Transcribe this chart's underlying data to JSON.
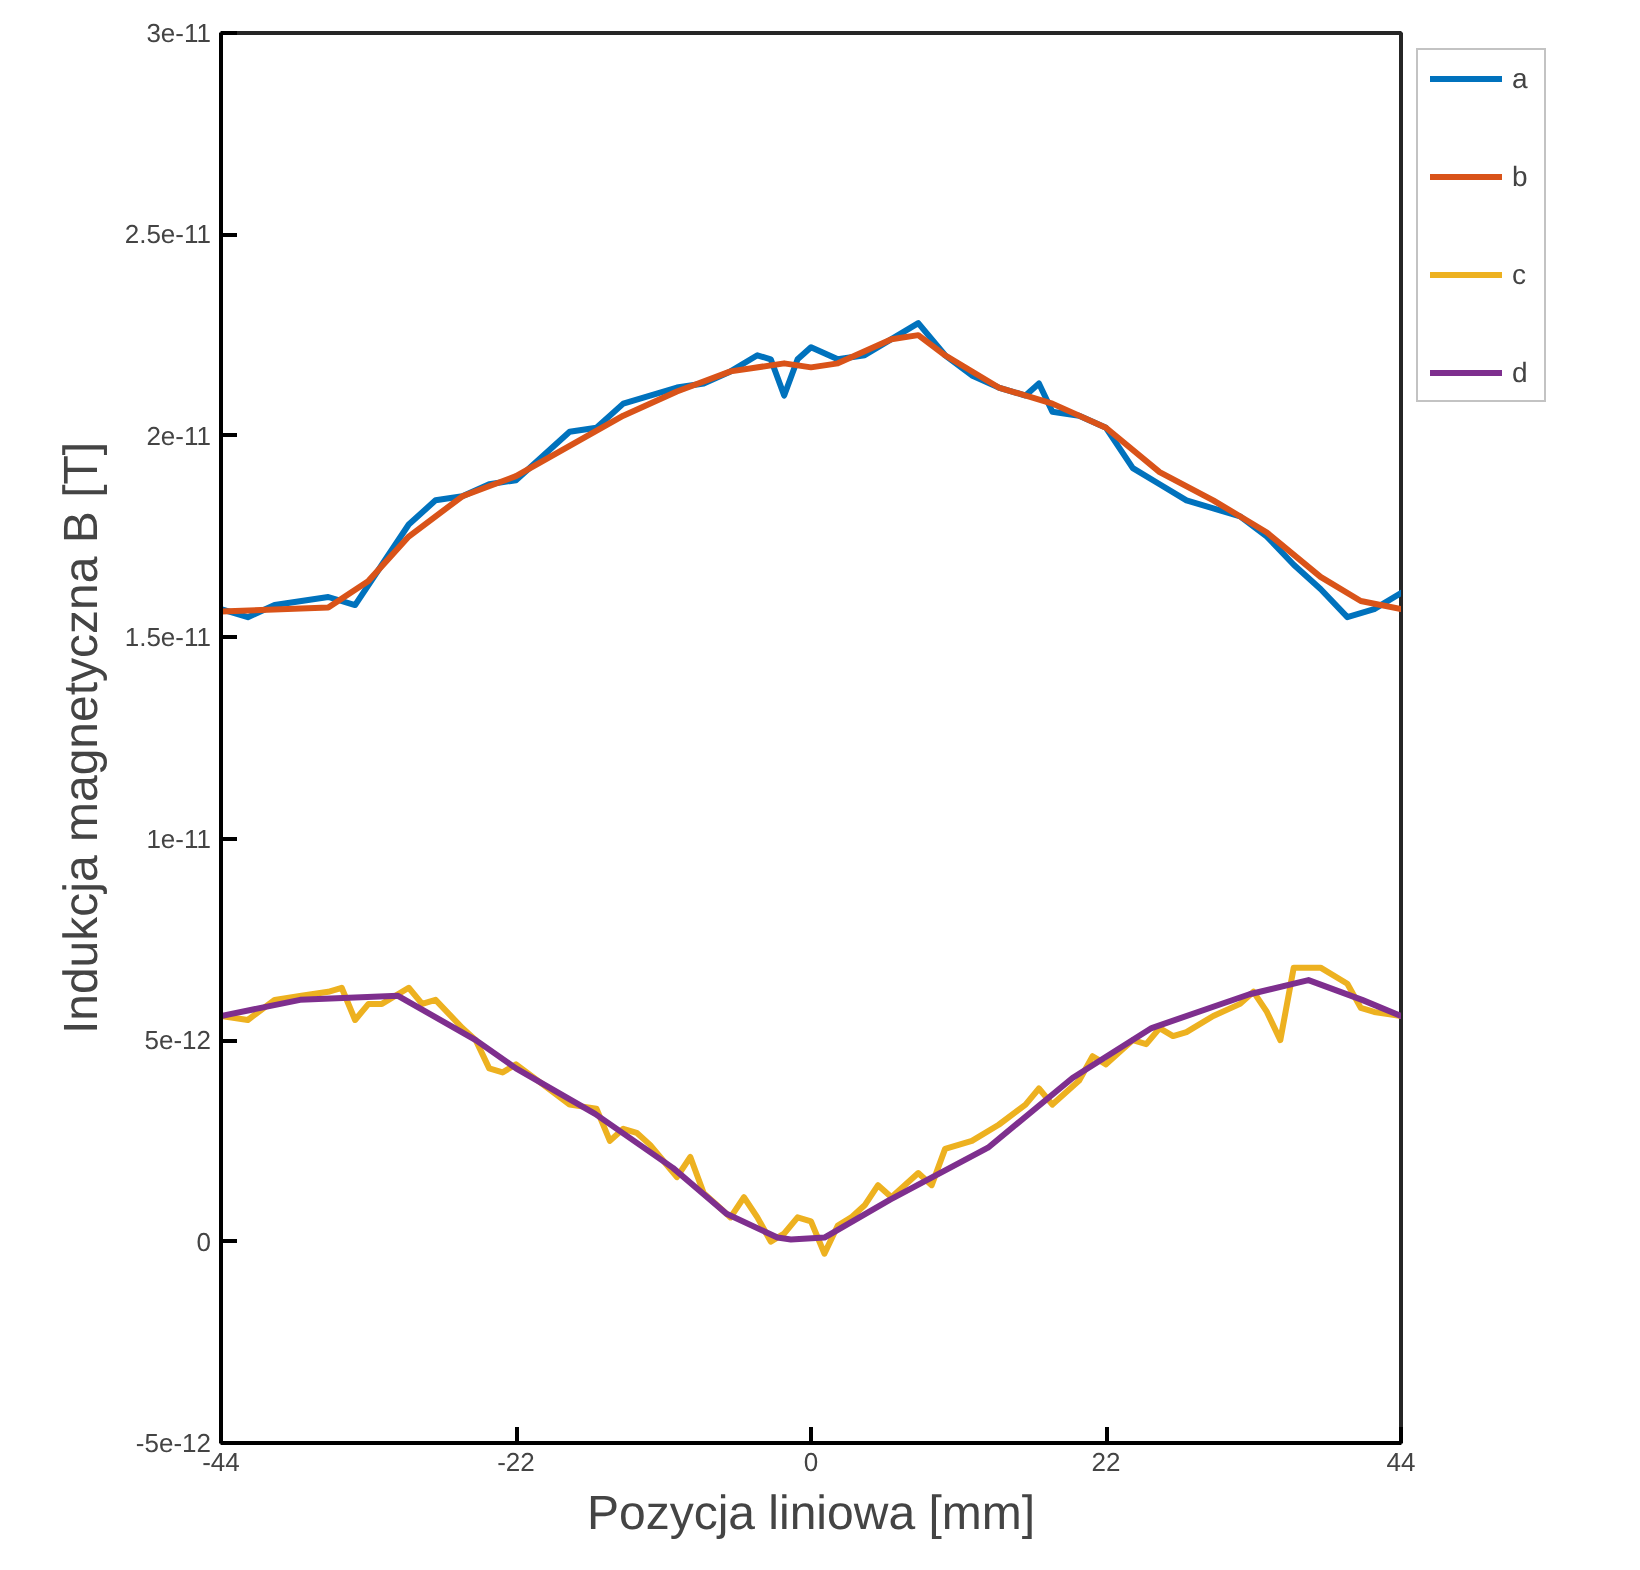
{
  "chart_data": {
    "type": "line",
    "xlabel": "Pozycja liniowa [mm]",
    "ylabel": "Indukcja magnetyczna B [T]",
    "xlim": [
      -44,
      44
    ],
    "xticks": [
      -44,
      -22,
      0,
      22,
      44
    ],
    "ylim": [
      -5e-12,
      3e-11
    ],
    "yticks": [
      {
        "value": -5e-12,
        "label": "-5e-12"
      },
      {
        "value": 0,
        "label": "0"
      },
      {
        "value": 5e-12,
        "label": "5e-12"
      },
      {
        "value": 1e-11,
        "label": "1e-11"
      },
      {
        "value": 1.5e-11,
        "label": "1.5e-11"
      },
      {
        "value": 2e-11,
        "label": "2e-11"
      },
      {
        "value": 2.5e-11,
        "label": "2.5e-11"
      },
      {
        "value": 3e-11,
        "label": "3e-11"
      }
    ],
    "grid": false,
    "legend": "top right",
    "marker": "none",
    "line_style": "solid",
    "series": [
      {
        "name": "a",
        "color": "#0072bd",
        "x": [
          -44,
          -42,
          -40,
          -38,
          -36,
          -34,
          -32,
          -30,
          -28,
          -26,
          -24,
          -22,
          -20,
          -18,
          -16,
          -14,
          -12,
          -10,
          -8,
          -6,
          -4,
          -3,
          -2,
          -1,
          0,
          2,
          4,
          6,
          8,
          10,
          12,
          14,
          16,
          17,
          18,
          20,
          22,
          24,
          26,
          28,
          30,
          32,
          34,
          36,
          38,
          40,
          42,
          44
        ],
        "values": [
          1.57e-11,
          1.55e-11,
          1.58e-11,
          1.59e-11,
          1.6e-11,
          1.58e-11,
          1.68e-11,
          1.78e-11,
          1.84e-11,
          1.85e-11,
          1.88e-11,
          1.89e-11,
          1.95e-11,
          2.01e-11,
          2.02e-11,
          2.08e-11,
          2.1e-11,
          2.12e-11,
          2.13e-11,
          2.16e-11,
          2.2e-11,
          2.19e-11,
          2.1e-11,
          2.19e-11,
          2.22e-11,
          2.19e-11,
          2.2e-11,
          2.24e-11,
          2.28e-11,
          2.2e-11,
          2.15e-11,
          2.12e-11,
          2.1e-11,
          2.13e-11,
          2.06e-11,
          2.05e-11,
          2.02e-11,
          1.92e-11,
          1.88e-11,
          1.84e-11,
          1.82e-11,
          1.8e-11,
          1.75e-11,
          1.68e-11,
          1.62e-11,
          1.55e-11,
          1.57e-11,
          1.61e-11
        ]
      },
      {
        "name": "b",
        "color": "#d95319",
        "x": [
          -44,
          -36,
          -33,
          -30,
          -26,
          -22,
          -18,
          -14,
          -10,
          -6,
          -2,
          0,
          2,
          6,
          8,
          10,
          14,
          18,
          22,
          26,
          30,
          34,
          38,
          41,
          44
        ],
        "values": [
          1.564e-11,
          1.574e-11,
          1.64e-11,
          1.75e-11,
          1.85e-11,
          1.9e-11,
          1.975e-11,
          2.05e-11,
          2.11e-11,
          2.16e-11,
          2.18e-11,
          2.17e-11,
          2.18e-11,
          2.24e-11,
          2.25e-11,
          2.2e-11,
          2.12e-11,
          2.08e-11,
          2.02e-11,
          1.91e-11,
          1.84e-11,
          1.76e-11,
          1.65e-11,
          1.59e-11,
          1.57e-11
        ]
      },
      {
        "name": "c",
        "color": "#edb120",
        "x": [
          -44,
          -42,
          -40,
          -38,
          -36,
          -35,
          -34,
          -33,
          -32,
          -30,
          -29,
          -28,
          -26,
          -25,
          -24,
          -23,
          -22,
          -20,
          -18,
          -16,
          -15,
          -14,
          -13,
          -12,
          -11,
          -10,
          -9,
          -8,
          -7,
          -6,
          -5,
          -4,
          -3,
          -2,
          -1,
          0,
          1,
          2,
          3,
          4,
          5,
          6,
          8,
          9,
          10,
          12,
          14,
          16,
          17,
          18,
          20,
          21,
          22,
          24,
          25,
          26,
          27,
          28,
          30,
          32,
          33,
          34,
          35,
          36,
          38,
          40,
          41,
          42,
          44
        ],
        "values": [
          5.6e-12,
          5.5e-12,
          6e-12,
          6.1e-12,
          6.2e-12,
          6.3e-12,
          5.5e-12,
          5.9e-12,
          5.9e-12,
          6.3e-12,
          5.9e-12,
          6e-12,
          5.3e-12,
          5e-12,
          4.3e-12,
          4.2e-12,
          4.4e-12,
          3.9e-12,
          3.4e-12,
          3.3e-12,
          2.5e-12,
          2.8e-12,
          2.7e-12,
          2.4e-12,
          2e-12,
          1.6e-12,
          2.1e-12,
          1.2e-12,
          9e-13,
          6e-13,
          1.1e-12,
          6e-13,
          0,
          2e-13,
          6e-13,
          5e-13,
          -3e-13,
          4e-13,
          6e-13,
          9e-13,
          1.4e-12,
          1.1e-12,
          1.7e-12,
          1.4e-12,
          2.3e-12,
          2.5e-12,
          2.9e-12,
          3.4e-12,
          3.8e-12,
          3.4e-12,
          4e-12,
          4.6e-12,
          4.4e-12,
          5e-12,
          4.9e-12,
          5.3e-12,
          5.1e-12,
          5.2e-12,
          5.6e-12,
          5.9e-12,
          6.2e-12,
          5.7e-12,
          5e-12,
          6.8e-12,
          6.8e-12,
          6.4e-12,
          5.8e-12,
          5.7e-12,
          5.6e-12
        ]
      },
      {
        "name": "d",
        "color": "#7e2f8e",
        "x": [
          -44,
          -38.1,
          -30.8,
          -25,
          -22,
          -16.1,
          -10.3,
          -6.3,
          -2.5,
          -1.5,
          1,
          5.9,
          13.2,
          19.5,
          25.4,
          32.7,
          37.1,
          41.1,
          44
        ],
        "values": [
          5.6e-12,
          6e-12,
          6.1e-12,
          5e-12,
          4.3e-12,
          3.17e-12,
          1.83e-12,
          6.9e-13,
          1e-13,
          5e-14,
          1e-13,
          1.04e-12,
          2.33e-12,
          4.06e-12,
          5.3e-12,
          6.14e-12,
          6.49e-12,
          6e-12,
          5.6e-12
        ]
      }
    ]
  }
}
